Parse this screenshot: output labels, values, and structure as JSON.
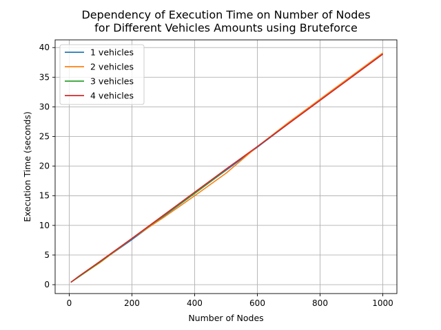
{
  "chart_data": {
    "type": "line",
    "title": "Dependency of Execution Time on Number of Nodes\nfor Different Vehicles Amounts using Bruteforce",
    "xlabel": "Number of Nodes",
    "ylabel": "Execution Time (seconds)",
    "xlim": [
      -45,
      1045
    ],
    "ylim": [
      -1.5,
      41.3
    ],
    "xticks": [
      0,
      200,
      400,
      600,
      800,
      1000
    ],
    "yticks": [
      0,
      5,
      10,
      15,
      20,
      25,
      30,
      35,
      40
    ],
    "grid": true,
    "legend_position": "top-left",
    "series": [
      {
        "name": "1 vehicles",
        "color": "#1f77b4",
        "x": [
          5,
          30,
          100,
          200,
          300,
          400,
          500,
          600,
          700,
          800,
          900,
          1000
        ],
        "y": [
          0.4,
          1.3,
          3.9,
          7.6,
          11.5,
          15.4,
          19.3,
          23.2,
          27.2,
          31.1,
          35.0,
          38.9
        ]
      },
      {
        "name": "2 vehicles",
        "color": "#ff7f0e",
        "x": [
          5,
          30,
          100,
          200,
          300,
          400,
          500,
          600,
          700,
          800,
          900,
          1000
        ],
        "y": [
          0.4,
          1.3,
          3.8,
          7.8,
          11.3,
          15.0,
          18.8,
          23.3,
          27.4,
          31.3,
          35.2,
          39.1
        ]
      },
      {
        "name": "3 vehicles",
        "color": "#2ca02c",
        "x": [
          5,
          30,
          100,
          200,
          300,
          400,
          500
        ],
        "y": [
          0.4,
          1.3,
          3.9,
          7.8,
          11.6,
          15.4,
          19.4
        ]
      },
      {
        "name": "4 vehicles",
        "color": "#d62728",
        "x": [
          5,
          30,
          100,
          200,
          300,
          400,
          500,
          600,
          700,
          800,
          900,
          1000
        ],
        "y": [
          0.4,
          1.4,
          4.0,
          7.8,
          11.7,
          15.6,
          19.5,
          23.3,
          27.2,
          31.1,
          35.0,
          38.9
        ]
      }
    ]
  }
}
